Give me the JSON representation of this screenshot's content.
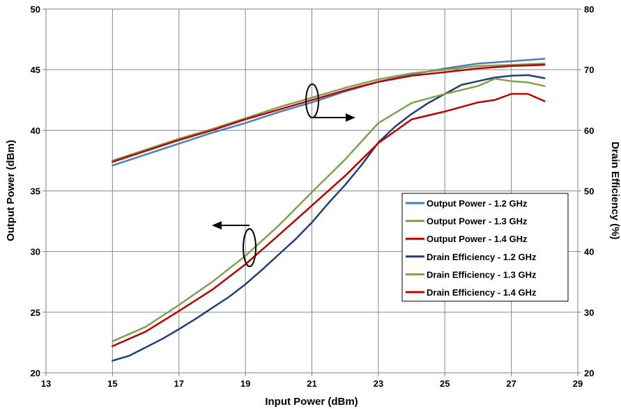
{
  "chart_data": {
    "type": "line",
    "title": "",
    "xlabel": "Input Power (dBm)",
    "ylabel_left": "Output Power (dBm)",
    "ylabel_right": "Drain Efficiency (%)",
    "xlim": [
      13,
      29
    ],
    "ylim_left": [
      20,
      50
    ],
    "ylim_right": [
      20,
      80
    ],
    "x_ticks": [
      "13",
      "15",
      "17",
      "19",
      "21",
      "23",
      "25",
      "27",
      "29"
    ],
    "y_left_ticks": [
      "20",
      "25",
      "30",
      "35",
      "40",
      "45",
      "50"
    ],
    "y_right_ticks": [
      "20",
      "30",
      "40",
      "50",
      "60",
      "70",
      "80"
    ],
    "grid": true,
    "legend_position": "middle-right",
    "series": [
      {
        "name": "Output Power - 1.2 GHz",
        "axis": "left",
        "color": "#4a7ebb",
        "x": [
          15,
          16,
          17,
          18,
          19,
          20,
          21,
          22,
          23,
          24,
          25,
          26,
          27,
          28
        ],
        "y": [
          37.1,
          38.0,
          38.9,
          39.8,
          40.6,
          41.5,
          42.3,
          43.2,
          44.0,
          44.6,
          45.1,
          45.5,
          45.7,
          45.9
        ]
      },
      {
        "name": "Output Power - 1.3 GHz",
        "axis": "left",
        "color": "#7fa04e",
        "x": [
          15,
          16,
          17,
          18,
          19,
          20,
          21,
          22,
          23,
          24,
          25,
          26,
          27,
          28
        ],
        "y": [
          37.5,
          38.4,
          39.3,
          40.1,
          41.0,
          41.9,
          42.7,
          43.5,
          44.2,
          44.7,
          45.0,
          45.3,
          45.4,
          45.5
        ]
      },
      {
        "name": "Output Power - 1.4 GHz",
        "axis": "left",
        "color": "#c00000",
        "x": [
          15,
          16,
          17,
          18,
          19,
          20,
          21,
          22,
          23,
          24,
          25,
          26,
          27,
          28
        ],
        "y": [
          37.4,
          38.3,
          39.2,
          40.0,
          40.9,
          41.7,
          42.5,
          43.3,
          44.0,
          44.5,
          44.8,
          45.1,
          45.3,
          45.4
        ]
      },
      {
        "name": "Drain Efficiency - 1.2 GHz",
        "axis": "right",
        "color": "#1f3f7a",
        "x": [
          15,
          15.5,
          16,
          16.5,
          17,
          17.5,
          18,
          18.5,
          19,
          19.5,
          20,
          20.5,
          21,
          21.5,
          22,
          22.5,
          23,
          23.5,
          24,
          24.5,
          25,
          25.5,
          26,
          26.5,
          27,
          27.5,
          28
        ],
        "y": [
          22.0,
          22.8,
          24.2,
          25.6,
          27.2,
          28.9,
          30.7,
          32.5,
          34.6,
          37.0,
          39.5,
          42.0,
          44.8,
          48.0,
          51.0,
          54.3,
          58.0,
          60.6,
          62.7,
          64.5,
          66.0,
          67.5,
          68.1,
          68.7,
          69.0,
          69.1,
          68.6
        ]
      },
      {
        "name": "Drain Efficiency - 1.3 GHz",
        "axis": "right",
        "color": "#7fa04e",
        "x": [
          15,
          16,
          17,
          18,
          19,
          20,
          21,
          22,
          23,
          24,
          25,
          26,
          26.5,
          27,
          27.5,
          28
        ],
        "y": [
          25.2,
          27.6,
          31.2,
          35.0,
          39.3,
          44.3,
          49.8,
          55.2,
          61.2,
          64.5,
          66.0,
          67.3,
          68.5,
          68.1,
          67.9,
          67.3
        ]
      },
      {
        "name": "Drain Efficiency - 1.4 GHz",
        "axis": "right",
        "color": "#c00000",
        "x": [
          15,
          16,
          17,
          18,
          19,
          20,
          21,
          22,
          23,
          24,
          25,
          26,
          26.5,
          27,
          27.5,
          28
        ],
        "y": [
          24.4,
          26.8,
          30.2,
          33.7,
          37.9,
          42.7,
          47.6,
          52.5,
          57.9,
          61.8,
          63.1,
          64.6,
          65.0,
          66.0,
          66.0,
          64.8
        ]
      }
    ]
  }
}
